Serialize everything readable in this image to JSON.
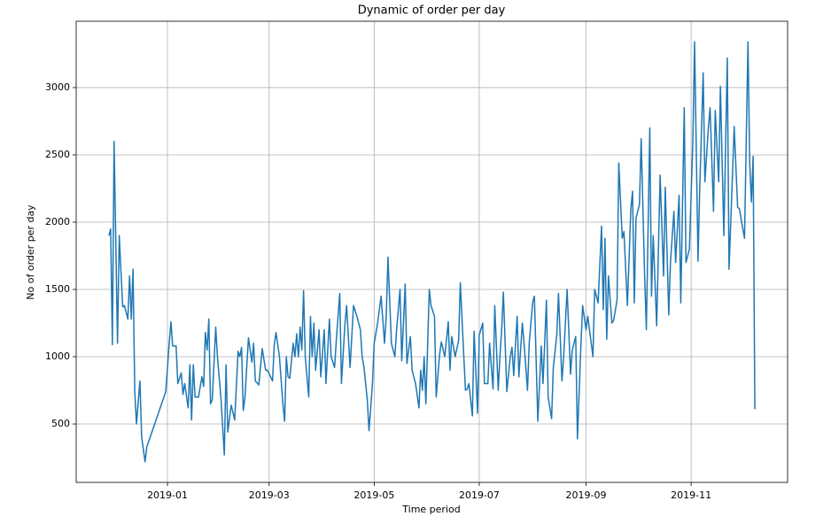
{
  "chart_data": {
    "type": "line",
    "title": "Dynamic of order per day",
    "xlabel": "Time period",
    "ylabel": "No of order per day",
    "color": "#1f77b4",
    "grid": true,
    "xlim": [
      17844,
      18257
    ],
    "ylim": [
      66,
      3493
    ],
    "xticks": [
      {
        "value": 17897,
        "label": "2019-01"
      },
      {
        "value": 17956,
        "label": "2019-03"
      },
      {
        "value": 18017,
        "label": "2019-05"
      },
      {
        "value": 18078,
        "label": "2019-07"
      },
      {
        "value": 18140,
        "label": "2019-09"
      },
      {
        "value": 18201,
        "label": "2019-11"
      }
    ],
    "yticks": [
      500,
      1000,
      1500,
      2000,
      2500,
      3000
    ],
    "x": [
      17863,
      17864,
      17865,
      17866,
      17868,
      17869,
      17871,
      17872,
      17874,
      17875,
      17876,
      17877,
      17878,
      17879,
      17881,
      17882,
      17884,
      17885,
      17896,
      17898,
      17899,
      17900,
      17902,
      17903,
      17905,
      17906,
      17907,
      17909,
      17910,
      17911,
      17912,
      17913,
      17915,
      17917,
      17918,
      17919,
      17920,
      17921,
      17922,
      17923,
      17925,
      17926,
      17928,
      17930,
      17931,
      17932,
      17934,
      17936,
      17938,
      17939,
      17940,
      17941,
      17942,
      17944,
      17946,
      17947,
      17948,
      17950,
      17952,
      17954,
      17955,
      17958,
      17959,
      17960,
      17962,
      17964,
      17965,
      17966,
      17967,
      17968,
      17970,
      17971,
      17972,
      17973,
      17974,
      17975,
      17976,
      17977,
      17979,
      17980,
      17981,
      17982,
      17983,
      17985,
      17986,
      17988,
      17989,
      17991,
      17992,
      17994,
      17995,
      17997,
      17998,
      18000,
      18001,
      18003,
      18005,
      18007,
      18009,
      18010,
      18011,
      18013,
      18014,
      18016,
      18017,
      18019,
      18021,
      18023,
      18024,
      18025,
      18027,
      18029,
      18030,
      18032,
      18033,
      18035,
      18036,
      18038,
      18039,
      18041,
      18043,
      18044,
      18045,
      18046,
      18047,
      18049,
      18050,
      18052,
      18053,
      18055,
      18056,
      18058,
      18060,
      18061,
      18062,
      18064,
      18066,
      18067,
      18069,
      18070,
      18071,
      18072,
      18074,
      18075,
      18077,
      18078,
      18080,
      18081,
      18083,
      18084,
      18086,
      18087,
      18089,
      18090,
      18091,
      18092,
      18094,
      18096,
      18097,
      18098,
      18100,
      18101,
      18103,
      18104,
      18106,
      18107,
      18109,
      18110,
      18112,
      18114,
      18115,
      18117,
      18118,
      18120,
      18121,
      18123,
      18124,
      18126,
      18127,
      18129,
      18131,
      18132,
      18134,
      18135,
      18137,
      18138,
      18140,
      18141,
      18143,
      18144,
      18145,
      18147,
      18149,
      18150,
      18151,
      18152,
      18153,
      18155,
      18156,
      18158,
      18159,
      18161,
      18162,
      18164,
      18166,
      18167,
      18168,
      18169,
      18171,
      18172,
      18174,
      18175,
      18177,
      18178,
      18179,
      18181,
      18183,
      18185,
      18186,
      18188,
      18189,
      18191,
      18192,
      18194,
      18195,
      18197,
      18198,
      18200,
      18202,
      18203,
      18205,
      18206,
      18208,
      18209,
      18211,
      18212,
      18214,
      18215,
      18217,
      18218,
      18220,
      18222,
      18223,
      18225,
      18226,
      18228,
      18229,
      18231,
      18232,
      18234,
      18235,
      18236,
      18237,
      18238
    ],
    "values": [
      1900,
      1950,
      1090,
      2600,
      1100,
      1900,
      1370,
      1380,
      1280,
      1600,
      1280,
      1650,
      740,
      500,
      820,
      400,
      220,
      330,
      740,
      1100,
      1260,
      1080,
      1080,
      800,
      880,
      720,
      800,
      620,
      940,
      530,
      940,
      700,
      700,
      850,
      780,
      1180,
      1050,
      1280,
      650,
      680,
      1220,
      1000,
      700,
      270,
      940,
      440,
      640,
      530,
      1040,
      1000,
      1070,
      600,
      700,
      1140,
      960,
      1100,
      820,
      790,
      1060,
      900,
      900,
      820,
      1090,
      1180,
      1000,
      650,
      520,
      1000,
      850,
      840,
      1100,
      1000,
      1170,
      1000,
      1220,
      1050,
      1490,
      1000,
      700,
      1300,
      1000,
      1250,
      900,
      1200,
      850,
      1200,
      800,
      1280,
      1000,
      920,
      1120,
      1470,
      800,
      1240,
      1380,
      920,
      1380,
      1300,
      1200,
      1000,
      930,
      680,
      450,
      800,
      1100,
      1250,
      1450,
      1100,
      1300,
      1740,
      1100,
      1000,
      1200,
      1500,
      970,
      1540,
      950,
      1150,
      900,
      800,
      620,
      900,
      750,
      1000,
      650,
      1500,
      1380,
      1300,
      700,
      1020,
      1110,
      1000,
      1260,
      900,
      1150,
      1000,
      1120,
      1550,
      1010,
      750,
      760,
      800,
      560,
      1190,
      580,
      1160,
      1250,
      800,
      800,
      1100,
      760,
      1380,
      750,
      1000,
      1200,
      1480,
      740,
      1000,
      1070,
      860,
      1300,
      850,
      1250,
      1100,
      750,
      1100,
      1400,
      1450,
      520,
      1080,
      800,
      1420,
      700,
      540,
      920,
      1160,
      1470,
      820,
      1000,
      1500,
      870,
      1050,
      1150,
      390,
      1080,
      1380,
      1200,
      1300,
      1100,
      1000,
      1500,
      1400,
      1970,
      1350,
      1880,
      1130,
      1600,
      1250,
      1270,
      1420,
      2440,
      1880,
      1930,
      1380,
      2100,
      2230,
      1400,
      2030,
      2130,
      2620,
      1600,
      1200,
      2700,
      1450,
      1900,
      1230,
      2350,
      1600,
      2260,
      1310,
      1700,
      2080,
      1700,
      2200,
      1400,
      2850,
      1700,
      1800,
      2600,
      3340,
      1710,
      2250,
      3110,
      2300,
      2700,
      2850,
      2080,
      2830,
      2300,
      3010,
      1900,
      3220,
      1650,
      2350,
      2710,
      2110,
      2100,
      1950,
      1880,
      3340,
      2440,
      2150,
      2490,
      610
    ]
  }
}
